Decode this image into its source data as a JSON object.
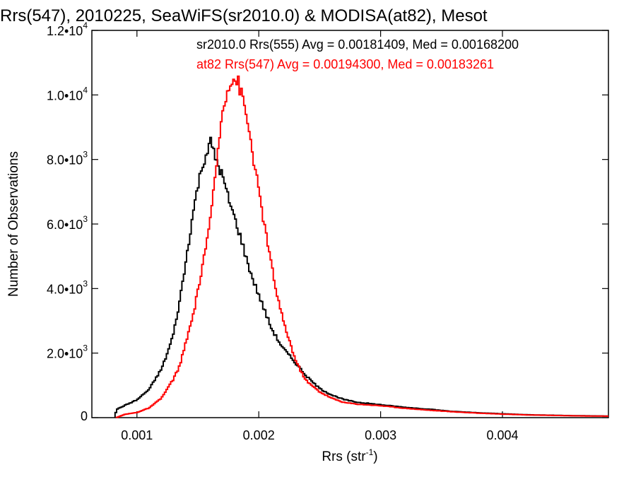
{
  "chart_data": {
    "type": "histogram",
    "title": "Rrs(547), 2010225, SeaWiFS(sr2010.0) & MODISA(at82), Mesot",
    "xlabel": "Rrs (str",
    "xlabel_sup": "-1",
    "xlabel_close": ")",
    "ylabel": "Number of Observations",
    "xlim": [
      0.00063,
      0.00487
    ],
    "ylim": [
      0,
      12000
    ],
    "grid": false,
    "legend_position": "top-right",
    "x_ticks": [
      {
        "value": 0.001,
        "label": "0.001"
      },
      {
        "value": 0.002,
        "label": "0.002"
      },
      {
        "value": 0.003,
        "label": "0.003"
      },
      {
        "value": 0.004,
        "label": "0.004"
      }
    ],
    "y_ticks": [
      {
        "value": 0,
        "mant": "0",
        "exp": ""
      },
      {
        "value": 2000,
        "mant": "2.0•10",
        "exp": "3"
      },
      {
        "value": 4000,
        "mant": "4.0•10",
        "exp": "3"
      },
      {
        "value": 6000,
        "mant": "6.0•10",
        "exp": "3"
      },
      {
        "value": 8000,
        "mant": "8.0•10",
        "exp": "3"
      },
      {
        "value": 10000,
        "mant": "1.0•10",
        "exp": "4"
      },
      {
        "value": 12000,
        "mant": "1.2•10",
        "exp": "4"
      }
    ],
    "series": [
      {
        "name": "sr2010.0",
        "legend_text": "sr2010.0 Rrs(555) Avg = 0.00181409, Med = 0.00168200",
        "color": "#000000",
        "points": [
          [
            0.00082,
            0
          ],
          [
            0.00083,
            250
          ],
          [
            0.0009,
            380
          ],
          [
            0.001,
            550
          ],
          [
            0.0011,
            880
          ],
          [
            0.0012,
            1500
          ],
          [
            0.00125,
            2000
          ],
          [
            0.0013,
            2600
          ],
          [
            0.00135,
            3600
          ],
          [
            0.0014,
            4800
          ],
          [
            0.00145,
            6100
          ],
          [
            0.0015,
            7200
          ],
          [
            0.00155,
            8000
          ],
          [
            0.00158,
            8300
          ],
          [
            0.0016,
            8600
          ],
          [
            0.00163,
            8200
          ],
          [
            0.00166,
            7900
          ],
          [
            0.0017,
            7500
          ],
          [
            0.00175,
            6800
          ],
          [
            0.0018,
            6200
          ],
          [
            0.00185,
            5600
          ],
          [
            0.0019,
            4900
          ],
          [
            0.00195,
            4300
          ],
          [
            0.002,
            3800
          ],
          [
            0.00205,
            3300
          ],
          [
            0.0021,
            2800
          ],
          [
            0.00215,
            2450
          ],
          [
            0.0022,
            2150
          ],
          [
            0.0023,
            1700
          ],
          [
            0.0024,
            1250
          ],
          [
            0.0025,
            900
          ],
          [
            0.0026,
            700
          ],
          [
            0.0027,
            560
          ],
          [
            0.0028,
            480
          ],
          [
            0.003,
            400
          ],
          [
            0.0032,
            320
          ],
          [
            0.0034,
            260
          ],
          [
            0.0036,
            190
          ],
          [
            0.0038,
            150
          ],
          [
            0.004,
            120
          ],
          [
            0.0042,
            90
          ],
          [
            0.0044,
            75
          ],
          [
            0.0046,
            60
          ],
          [
            0.00487,
            50
          ]
        ]
      },
      {
        "name": "at82",
        "legend_text": "at82 Rrs(547) Avg = 0.00194300, Med = 0.00183261",
        "color": "#ff0000",
        "points": [
          [
            0.00083,
            0
          ],
          [
            0.0009,
            100
          ],
          [
            0.001,
            160
          ],
          [
            0.0011,
            300
          ],
          [
            0.0012,
            600
          ],
          [
            0.00125,
            900
          ],
          [
            0.0013,
            1200
          ],
          [
            0.00135,
            1600
          ],
          [
            0.0014,
            2300
          ],
          [
            0.00145,
            3000
          ],
          [
            0.0015,
            3900
          ],
          [
            0.00155,
            5000
          ],
          [
            0.0016,
            6000
          ],
          [
            0.00163,
            7000
          ],
          [
            0.00165,
            7800
          ],
          [
            0.00168,
            8700
          ],
          [
            0.0017,
            9500
          ],
          [
            0.00173,
            10000
          ],
          [
            0.00176,
            10400
          ],
          [
            0.0018,
            10500
          ],
          [
            0.00183,
            10400
          ],
          [
            0.00186,
            10000
          ],
          [
            0.00189,
            9500
          ],
          [
            0.00192,
            8900
          ],
          [
            0.00195,
            8200
          ],
          [
            0.002,
            7000
          ],
          [
            0.00205,
            5900
          ],
          [
            0.0021,
            4800
          ],
          [
            0.00215,
            3800
          ],
          [
            0.0022,
            3000
          ],
          [
            0.00225,
            2400
          ],
          [
            0.0023,
            1800
          ],
          [
            0.00235,
            1400
          ],
          [
            0.0024,
            1100
          ],
          [
            0.0025,
            800
          ],
          [
            0.0026,
            600
          ],
          [
            0.0027,
            470
          ],
          [
            0.0028,
            420
          ],
          [
            0.003,
            370
          ],
          [
            0.0032,
            290
          ],
          [
            0.0034,
            230
          ],
          [
            0.0036,
            180
          ],
          [
            0.0038,
            140
          ],
          [
            0.004,
            110
          ],
          [
            0.0042,
            85
          ],
          [
            0.0044,
            70
          ],
          [
            0.0046,
            55
          ],
          [
            0.00487,
            45
          ]
        ]
      }
    ]
  }
}
